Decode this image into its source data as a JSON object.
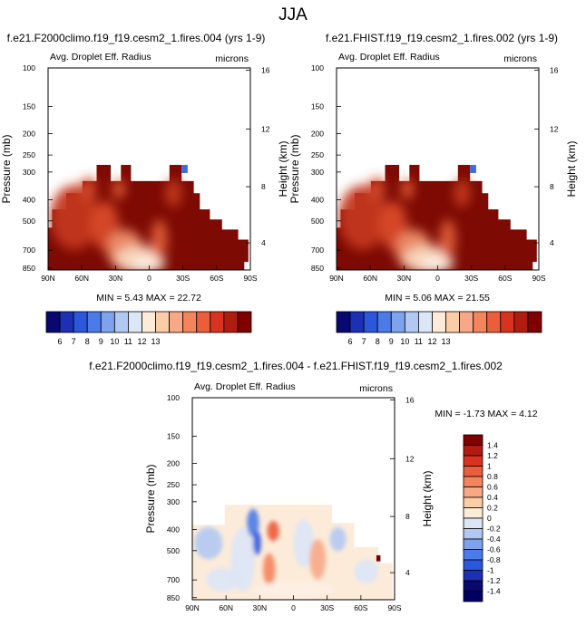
{
  "chart_data": [
    {
      "type": "heatmap",
      "id": "p1",
      "title": "f.e21.F2000climo.f19_f19.cesm2_1.fires.004 (yrs 1-9)",
      "subtitle_left": "Avg. Droplet Eff. Radius",
      "subtitle_right": "microns",
      "ylabel": "Pressure (mb)",
      "ylabel_right": "Height (km)",
      "x_ticks": [
        "90N",
        "60N",
        "30N",
        "0",
        "30S",
        "60S",
        "90S"
      ],
      "y_ticks": [
        "100",
        "150",
        "200",
        "250",
        "300",
        "400",
        "500",
        "700",
        "850"
      ],
      "y_right_ticks": [
        "16",
        "12",
        "8",
        "4"
      ],
      "stats": "MIN =   5.43  MAX =  22.72",
      "colorbar": {
        "orientation": "horizontal",
        "labels": [
          "6",
          "7",
          "8",
          "9",
          "10",
          "11",
          "12",
          "13"
        ],
        "colors": [
          "#08086e",
          "#1c2fb6",
          "#2b57dc",
          "#4a7be8",
          "#7ea3ec",
          "#b1c9f2",
          "#dbe6f7",
          "#fdebd9",
          "#fbcda6",
          "#f7a987",
          "#f4845c",
          "#ec5d3c",
          "#d9331f",
          "#b11c10",
          "#800000"
        ]
      }
    },
    {
      "type": "heatmap",
      "id": "p2",
      "title": "f.e21.FHIST.f19_f19.cesm2_1.fires.002 (yrs 1-9)",
      "subtitle_left": "Avg. Droplet Eff. Radius",
      "subtitle_right": "microns",
      "ylabel": "Pressure (mb)",
      "ylabel_right": "Height (km)",
      "x_ticks": [
        "90N",
        "60N",
        "30N",
        "0",
        "30S",
        "60S",
        "90S"
      ],
      "y_ticks": [
        "100",
        "150",
        "200",
        "250",
        "300",
        "400",
        "500",
        "700",
        "850"
      ],
      "y_right_ticks": [
        "16",
        "12",
        "8",
        "4"
      ],
      "stats": "MIN =   5.06  MAX =  21.55",
      "colorbar": {
        "orientation": "horizontal",
        "labels": [
          "6",
          "7",
          "8",
          "9",
          "10",
          "11",
          "12",
          "13"
        ],
        "colors": [
          "#08086e",
          "#1c2fb6",
          "#2b57dc",
          "#4a7be8",
          "#7ea3ec",
          "#b1c9f2",
          "#dbe6f7",
          "#fdebd9",
          "#fbcda6",
          "#f7a987",
          "#f4845c",
          "#ec5d3c",
          "#d9331f",
          "#b11c10",
          "#800000"
        ]
      }
    },
    {
      "type": "heatmap",
      "id": "p3",
      "title": "f.e21.F2000climo.f19_f19.cesm2_1.fires.004 - f.e21.FHIST.f19_f19.cesm2_1.fires.002",
      "subtitle_left": "Avg. Droplet Eff. Radius",
      "subtitle_right": "microns",
      "ylabel": "Pressure (mb)",
      "ylabel_right": "Height (km)",
      "x_ticks": [
        "90N",
        "60N",
        "30N",
        "0",
        "30S",
        "60S",
        "90S"
      ],
      "y_ticks": [
        "100",
        "150",
        "200",
        "250",
        "300",
        "400",
        "500",
        "700",
        "850"
      ],
      "y_right_ticks": [
        "16",
        "12",
        "8",
        "4"
      ],
      "stats": "MIN =  -1.73  MAX =   4.12",
      "colorbar": {
        "orientation": "vertical",
        "labels": [
          "1.4",
          "1.2",
          "1",
          "0.8",
          "0.6",
          "0.4",
          "0.2",
          "0",
          "-0.2",
          "-0.4",
          "-0.6",
          "-0.8",
          "-1",
          "-1.2",
          "-1.4"
        ],
        "colors": [
          "#800000",
          "#b11c10",
          "#d9331f",
          "#ec5d3c",
          "#f4845c",
          "#f7a987",
          "#fbcda6",
          "#fdebd9",
          "#dbe6f7",
          "#b1c9f2",
          "#7ea3ec",
          "#4a7be8",
          "#2b57dc",
          "#1c2fb6",
          "#08086e",
          "#000060"
        ]
      }
    }
  ],
  "figure": {
    "season": "JJA"
  }
}
